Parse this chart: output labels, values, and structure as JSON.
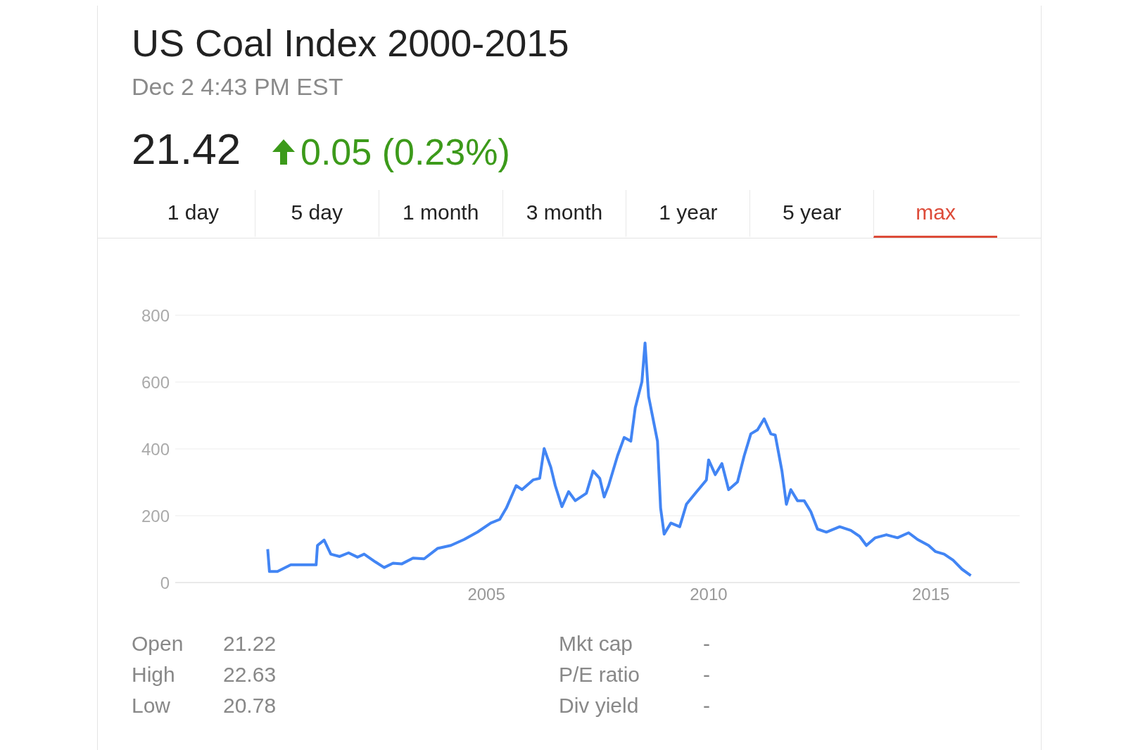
{
  "chart_data": {
    "type": "line",
    "title": "US Coal Index 2000-2015",
    "subtitle": "Dec 2 4:43 PM EST",
    "annotations": [
      "21.42",
      "0.05 (0.23%)",
      "1 day",
      "5 day",
      "1 month",
      "3 month",
      "1 year",
      "5 year",
      "max",
      "Open",
      "21.22",
      "High",
      "22.63",
      "Low",
      "20.78",
      "Mkt cap",
      "-",
      "P/E ratio",
      "-",
      "Div yield",
      "-"
    ],
    "x": [
      2000.08,
      2000.12,
      2000.3,
      2000.6,
      2001.17,
      2001.2,
      2001.35,
      2001.5,
      2001.7,
      2001.9,
      2002.1,
      2002.25,
      2002.5,
      2002.7,
      2002.9,
      2003.1,
      2003.35,
      2003.6,
      2003.9,
      2004.2,
      2004.5,
      2004.8,
      2005.1,
      2005.3,
      2005.45,
      2005.67,
      2005.8,
      2006.05,
      2006.2,
      2006.3,
      2006.45,
      2006.55,
      2006.7,
      2006.85,
      2007.0,
      2007.25,
      2007.4,
      2007.55,
      2007.65,
      2007.75,
      2007.95,
      2008.1,
      2008.25,
      2008.35,
      2008.5,
      2008.57,
      2008.65,
      2008.75,
      2008.85,
      2008.92,
      2009.0,
      2009.15,
      2009.35,
      2009.5,
      2009.7,
      2009.95,
      2010.0,
      2010.15,
      2010.3,
      2010.45,
      2010.65,
      2010.8,
      2010.95,
      2011.1,
      2011.25,
      2011.4,
      2011.5,
      2011.65,
      2011.75,
      2011.85,
      2012.0,
      2012.15,
      2012.3,
      2012.45,
      2012.65,
      2012.95,
      2013.2,
      2013.4,
      2013.55,
      2013.75,
      2014.0,
      2014.25,
      2014.5,
      2014.7,
      2014.95,
      2015.1,
      2015.3,
      2015.5,
      2015.7,
      2015.9
    ],
    "series": [
      {
        "color": "#4285f4",
        "values": [
          100,
          33,
          33,
          53,
          53,
          111,
          127,
          85,
          78,
          89,
          76,
          85,
          62,
          45,
          58,
          56,
          73,
          71,
          102,
          111,
          129,
          151,
          178,
          189,
          223,
          290,
          278,
          307,
          312,
          401,
          345,
          290,
          227,
          272,
          245,
          267,
          334,
          312,
          256,
          290,
          379,
          434,
          423,
          523,
          601,
          717,
          557,
          490,
          423,
          223,
          145,
          178,
          167,
          234,
          267,
          307,
          367,
          323,
          356,
          278,
          301,
          379,
          445,
          457,
          490,
          445,
          441,
          334,
          234,
          278,
          245,
          245,
          212,
          160,
          151,
          167,
          156,
          138,
          111,
          134,
          143,
          134,
          149,
          129,
          111,
          93,
          85,
          67,
          40,
          21
        ]
      }
    ],
    "xlim": [
      1998,
      2017
    ],
    "xticks": [
      2005,
      2010,
      2015
    ],
    "ylim": [
      0,
      800
    ],
    "yticks": [
      0,
      200,
      400,
      600,
      800
    ],
    "grid": "y",
    "legend": false,
    "marker": "none",
    "line_style": "solid"
  }
}
